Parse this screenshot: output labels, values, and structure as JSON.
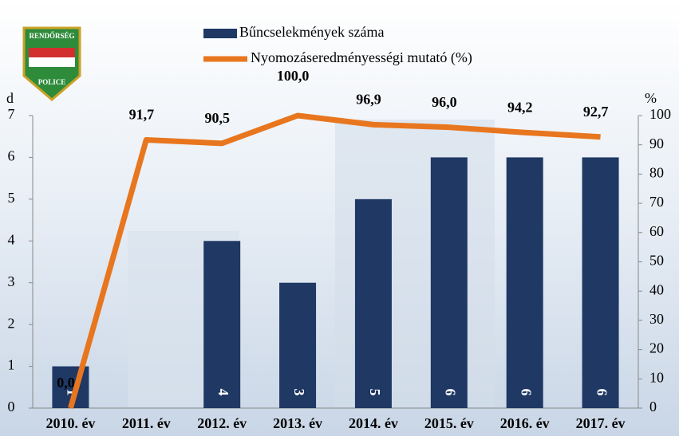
{
  "logo": {
    "top": "RENDŐRSÉG",
    "bottom": "POLICE"
  },
  "chart_data": {
    "type": "bar-line",
    "categories": [
      "2010. év",
      "2011. év",
      "2012. év",
      "2013. év",
      "2014. év",
      "2015. év",
      "2016. év",
      "2017. év"
    ],
    "y_label": "d",
    "y2_label": "%",
    "ylim": [
      0,
      7
    ],
    "yticks": [
      0,
      1,
      2,
      3,
      4,
      5,
      6,
      7
    ],
    "y2lim": [
      0,
      100
    ],
    "y2ticks": [
      0,
      10,
      20,
      30,
      40,
      50,
      60,
      70,
      80,
      90,
      100
    ],
    "series": [
      {
        "name": "Bűncselekmények száma",
        "type": "bar",
        "color": "#1f3864",
        "values": [
          1,
          null,
          4,
          3,
          5,
          6,
          6,
          6
        ]
      },
      {
        "name": "Nyomozáseredményességi mutató (%)",
        "type": "line",
        "axis": "y2",
        "color": "#e8761e",
        "values": [
          0.0,
          91.7,
          90.5,
          100.0,
          96.9,
          96.0,
          94.2,
          92.7
        ],
        "value_labels": [
          "0,0",
          "91,7",
          "90,5",
          "100,0",
          "96,9",
          "96,0",
          "94,2",
          "92,7"
        ]
      }
    ]
  }
}
